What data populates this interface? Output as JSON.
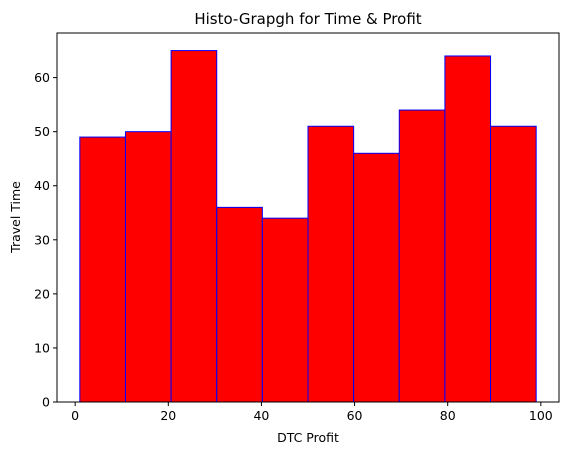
{
  "chart_data": {
    "type": "bar",
    "title": "Histo-Grapgh for Time & Profit",
    "xlabel": "DTC Profit",
    "ylabel": "Travel Time",
    "bins": [
      {
        "start": 1.0,
        "end": 10.8,
        "value": 49
      },
      {
        "start": 10.8,
        "end": 20.6,
        "value": 50
      },
      {
        "start": 20.6,
        "end": 30.4,
        "value": 65
      },
      {
        "start": 30.4,
        "end": 40.2,
        "value": 36
      },
      {
        "start": 40.2,
        "end": 50.0,
        "value": 34
      },
      {
        "start": 50.0,
        "end": 59.8,
        "value": 51
      },
      {
        "start": 59.8,
        "end": 69.6,
        "value": 46
      },
      {
        "start": 69.6,
        "end": 79.4,
        "value": 54
      },
      {
        "start": 79.4,
        "end": 89.2,
        "value": 64
      },
      {
        "start": 89.2,
        "end": 99.0,
        "value": 51
      }
    ],
    "xlim": [
      -3.9,
      103.9
    ],
    "ylim": [
      0,
      68.25
    ],
    "xticks": [
      0,
      20,
      40,
      60,
      80,
      100
    ],
    "yticks": [
      0,
      10,
      20,
      30,
      40,
      50,
      60
    ],
    "grid": false,
    "colors": {
      "bar_fill": "#ff0000",
      "bar_edge": "#0000ff"
    }
  }
}
